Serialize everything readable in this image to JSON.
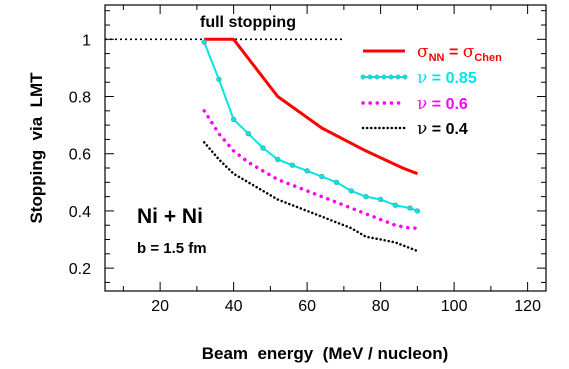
{
  "chart_data": {
    "type": "line",
    "xlabel": "Beam  energy  (MeV / nucleon)",
    "ylabel": "Stopping  via  LMT",
    "xlim": [
      5,
      125
    ],
    "ylim": [
      0.12,
      1.12
    ],
    "xticks": [
      20,
      40,
      60,
      80,
      100,
      120
    ],
    "xtick_labels": [
      "20",
      "40",
      "60",
      "80",
      "100",
      "120"
    ],
    "yticks": [
      0.2,
      0.4,
      0.6,
      0.8,
      1.0
    ],
    "ytick_labels": [
      "0.2",
      "0.4",
      "0.6",
      "0.8",
      "1"
    ],
    "grid": false,
    "legend_position": "top-right",
    "annotations": {
      "reference_label": "full  stopping",
      "reference_y": 1.0,
      "reference_x": [
        5,
        70
      ],
      "system": "Ni + Ni",
      "impact": "b = 1.5 fm"
    },
    "series": [
      {
        "name": "σNN = σChen",
        "legend": {
          "sym": "σ",
          "sub1": "NN",
          "eq": " = ",
          "sym2": "σ",
          "sub2": "Chen"
        },
        "color": "#ff0000",
        "style": "solid",
        "x": [
          32,
          40,
          52,
          64,
          76,
          86,
          90
        ],
        "y": [
          1.0,
          1.0,
          0.8,
          0.69,
          0.61,
          0.55,
          0.53
        ]
      },
      {
        "name": "ν = 0.85",
        "legend": {
          "sym": "ν",
          "text": " = 0.85"
        },
        "color": "#00e5e5",
        "style": "solid-markers",
        "x": [
          32,
          36,
          40,
          44,
          48,
          52,
          56,
          60,
          64,
          68,
          72,
          76,
          80,
          84,
          88,
          90
        ],
        "y": [
          0.99,
          0.86,
          0.72,
          0.67,
          0.62,
          0.58,
          0.56,
          0.54,
          0.52,
          0.5,
          0.47,
          0.45,
          0.44,
          0.42,
          0.41,
          0.4
        ]
      },
      {
        "name": "ν = 0.6",
        "legend": {
          "sym": "ν",
          "text": " = 0.6"
        },
        "color": "#ff00ff",
        "style": "dotted",
        "x": [
          32,
          36,
          40,
          44,
          48,
          52,
          56,
          60,
          64,
          68,
          72,
          76,
          80,
          84,
          88,
          90
        ],
        "y": [
          0.75,
          0.67,
          0.61,
          0.57,
          0.54,
          0.51,
          0.49,
          0.47,
          0.45,
          0.43,
          0.41,
          0.39,
          0.37,
          0.35,
          0.34,
          0.34
        ]
      },
      {
        "name": "ν = 0.4",
        "legend": {
          "sym": "ν",
          "text": " = 0.4"
        },
        "color": "#000000",
        "style": "dotted",
        "x": [
          32,
          36,
          40,
          44,
          48,
          52,
          56,
          60,
          64,
          68,
          72,
          76,
          80,
          84,
          88,
          90
        ],
        "y": [
          0.64,
          0.58,
          0.53,
          0.5,
          0.47,
          0.44,
          0.42,
          0.4,
          0.38,
          0.36,
          0.34,
          0.31,
          0.3,
          0.29,
          0.27,
          0.26
        ]
      }
    ]
  }
}
